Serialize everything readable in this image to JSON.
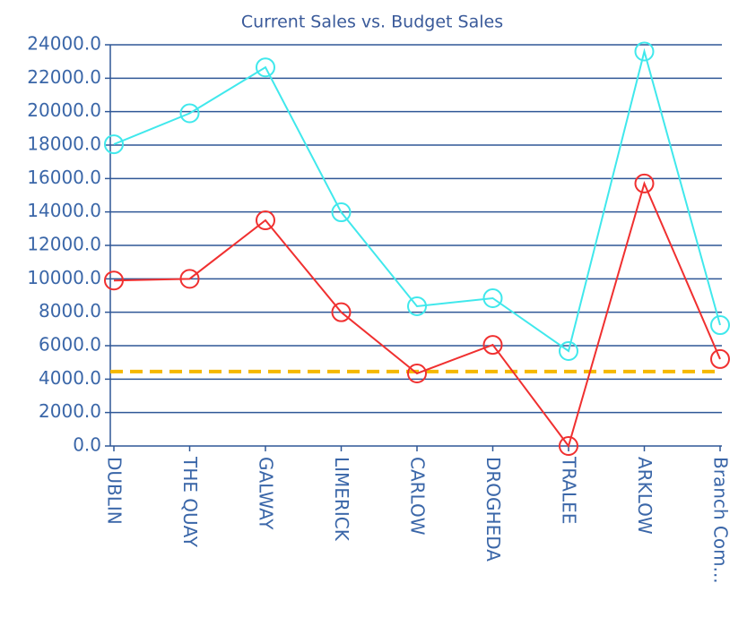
{
  "chart_data": {
    "type": "line",
    "title": "Current Sales vs. Budget Sales",
    "categories": [
      "DUBLIN",
      "THE QUAY",
      "GALWAY",
      "LIMERICK",
      "CARLOW",
      "DROGHEDA",
      "TRALEE",
      "ARKLOW",
      "Branch Com..."
    ],
    "series": [
      {
        "color": "#40e8ec",
        "values": [
          18050,
          19900,
          22650,
          13980,
          8360,
          8840,
          5680,
          23600,
          7230
        ]
      },
      {
        "color": "#f03030",
        "values": [
          9900,
          10000,
          13500,
          8000,
          4340,
          6050,
          0,
          15700,
          5200
        ]
      }
    ],
    "reference_line": {
      "value": 4450,
      "color": "#f5b800"
    },
    "ylim": [
      0,
      24000
    ],
    "yticks": [
      {
        "value": 0,
        "label": "0.0"
      },
      {
        "value": 2000,
        "label": "2000.0"
      },
      {
        "value": 4000,
        "label": "4000.0"
      },
      {
        "value": 6000,
        "label": "6000.0"
      },
      {
        "value": 8000,
        "label": "8000.0"
      },
      {
        "value": 10000,
        "label": "10000.0"
      },
      {
        "value": 12000,
        "label": "12000.0"
      },
      {
        "value": 14000,
        "label": "14000.0"
      },
      {
        "value": 16000,
        "label": "16000.0"
      },
      {
        "value": 18000,
        "label": "18000.0"
      },
      {
        "value": 20000,
        "label": "20000.0"
      },
      {
        "value": 22000,
        "label": "22000.0"
      },
      {
        "value": 24000,
        "label": "24000.0"
      }
    ],
    "grid": true
  }
}
